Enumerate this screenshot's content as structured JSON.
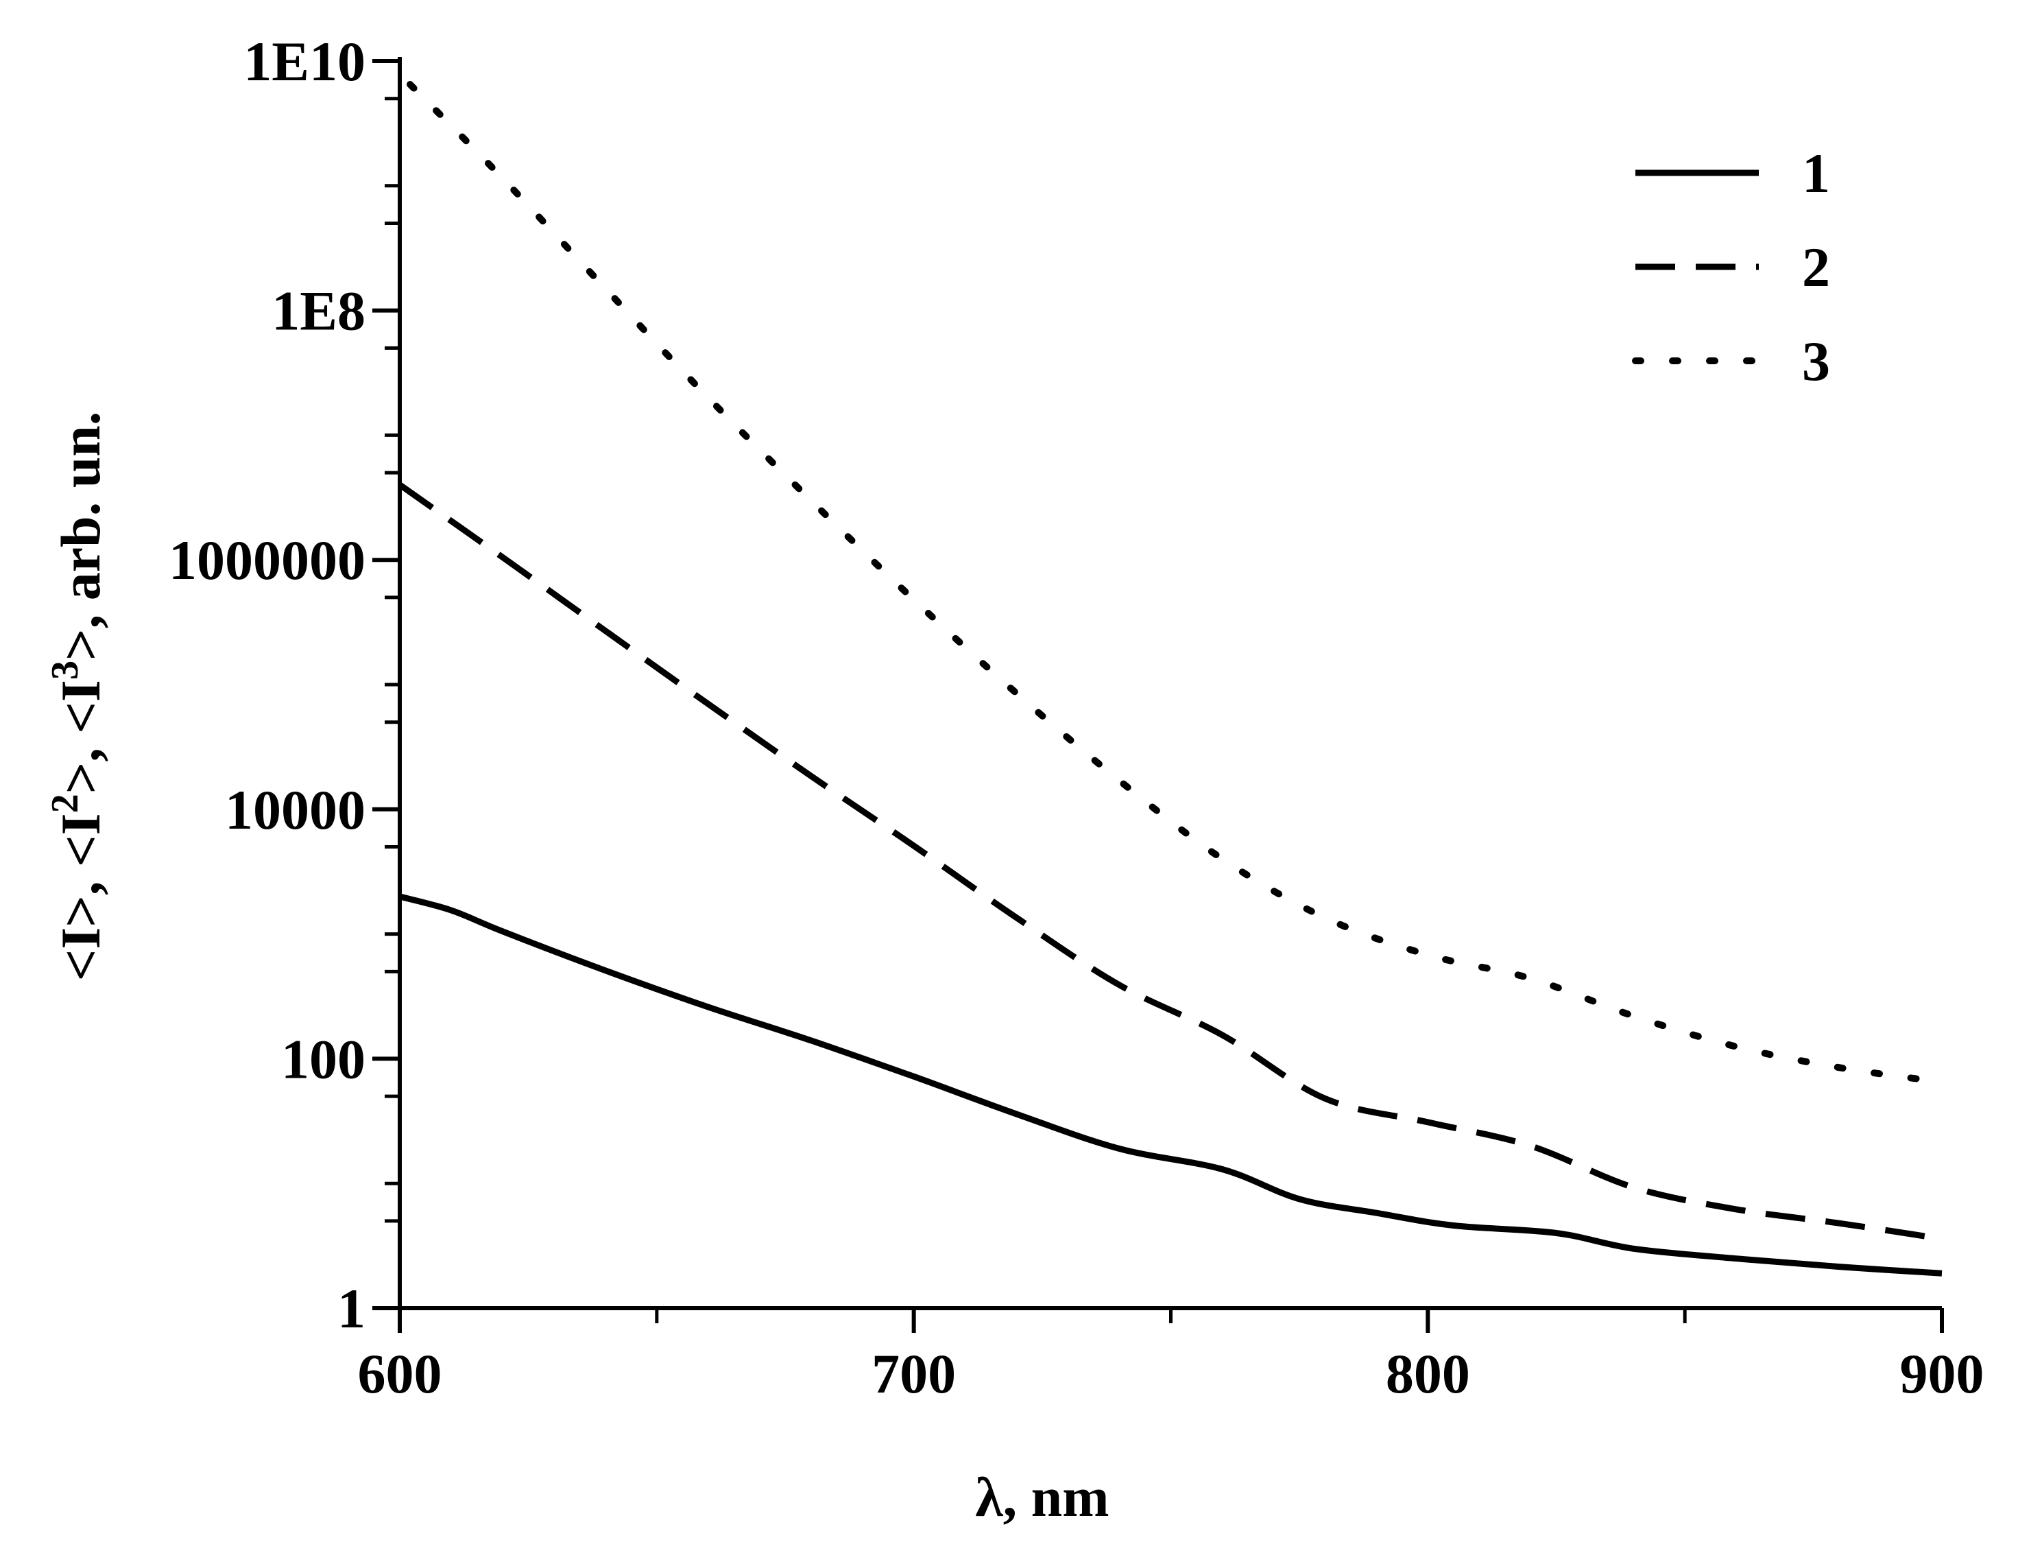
{
  "chart_data": {
    "type": "line",
    "title": "",
    "xlabel": "λ, nm",
    "ylabel": {
      "parts": [
        "<I>, <I",
        "2",
        ">, <I",
        "3",
        ">, arb. un."
      ]
    },
    "xlim": [
      600,
      900
    ],
    "ylim": [
      1,
      10000000000
    ],
    "yscale": "log",
    "x_ticks": [
      600,
      700,
      800,
      900
    ],
    "x_tick_labels": [
      "600",
      "700",
      "800",
      "900"
    ],
    "y_ticks": [
      1,
      100,
      10000,
      1000000,
      100000000,
      10000000000
    ],
    "y_tick_labels": [
      "1",
      "100",
      "10000",
      "1000000",
      "1E8",
      "1E10"
    ],
    "grid": false,
    "legend_position": "top-right",
    "series": [
      {
        "name": "1",
        "style": "solid",
        "x": [
          600,
          610,
          620,
          640,
          660,
          680,
          700,
          720,
          740,
          760,
          775,
          790,
          805,
          825,
          840,
          860,
          880,
          900
        ],
        "y": [
          2000,
          1550,
          1050,
          510,
          260,
          140,
          72,
          36,
          19,
          13,
          7.5,
          5.8,
          4.6,
          4.0,
          3.0,
          2.5,
          2.15,
          1.9
        ]
      },
      {
        "name": "2",
        "style": "dashed",
        "x": [
          600,
          620,
          640,
          660,
          680,
          700,
          720,
          740,
          760,
          780,
          800,
          820,
          840,
          860,
          880,
          900
        ],
        "y": [
          4000000,
          1050000,
          270000,
          70000,
          18500,
          5100,
          1350,
          390,
          155,
          48,
          31,
          20,
          9.3,
          6.2,
          4.8,
          3.6
        ]
      },
      {
        "name": "3",
        "style": "dotted",
        "x": [
          602,
          620,
          640,
          660,
          680,
          700,
          720,
          740,
          760,
          780,
          800,
          820,
          840,
          860,
          880,
          900
        ],
        "y": [
          6500000000,
          1150000000,
          150000000,
          20000000,
          3000000,
          480000,
          85000,
          17000,
          4000,
          1350,
          680,
          440,
          220,
          125,
          85,
          65
        ]
      }
    ]
  }
}
